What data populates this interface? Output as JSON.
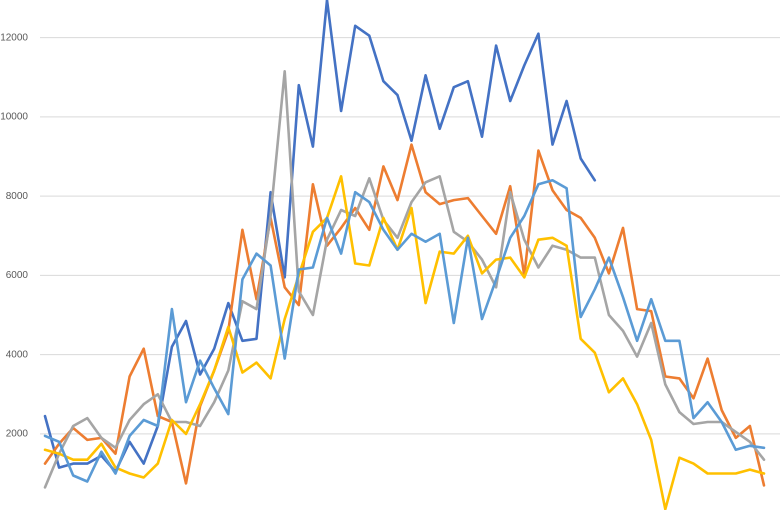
{
  "chart_data": {
    "type": "line",
    "categories": [
      null,
      null,
      null,
      null,
      null,
      null,
      null,
      null,
      null,
      null,
      null,
      null,
      null,
      null,
      null,
      null,
      null,
      null,
      null,
      null,
      null,
      null,
      null,
      null,
      null,
      null,
      null,
      null,
      null,
      null,
      null,
      null,
      null,
      null,
      null,
      null,
      null,
      null,
      null,
      null,
      null,
      null,
      null,
      null,
      null,
      null,
      null,
      null,
      null,
      null,
      null,
      null
    ],
    "ylim": [
      80,
      12950
    ],
    "yticks": [
      2000,
      4000,
      6000,
      8000,
      10000,
      12000
    ],
    "grid": true,
    "series": [
      {
        "color": "#4472c4",
        "values": [
          2450,
          1150,
          1250,
          1250,
          1450,
          1050,
          1800,
          1250,
          2200,
          4200,
          4850,
          3500,
          4150,
          5300,
          4350,
          4400,
          8100,
          5950,
          10800,
          9250,
          12950,
          10150,
          12300,
          12050,
          10900,
          10550,
          9400,
          11050,
          9700,
          10750,
          10900,
          9500,
          11800,
          10400,
          11300,
          12100,
          9300,
          10400,
          8950,
          8400,
          null,
          null,
          null,
          null,
          null,
          null,
          null,
          null,
          null,
          null,
          null,
          null
        ]
      },
      {
        "color": "#ed7d31",
        "values": [
          1250,
          1750,
          2150,
          1850,
          1900,
          1500,
          3450,
          4150,
          2450,
          2300,
          750,
          2700,
          3600,
          4600,
          7150,
          5400,
          7450,
          5700,
          5250,
          8300,
          6750,
          7200,
          7700,
          7150,
          8750,
          7900,
          9300,
          8100,
          7800,
          7900,
          7950,
          7500,
          7050,
          8250,
          6000,
          9150,
          8150,
          7650,
          7450,
          6950,
          6050,
          7200,
          5150,
          5100,
          3450,
          3400,
          2900,
          3900,
          2600,
          1900,
          2200,
          700
        ]
      },
      {
        "color": "#a5a5a5",
        "values": [
          650,
          1500,
          2200,
          2400,
          1900,
          1650,
          2350,
          2750,
          3000,
          2300,
          2300,
          2200,
          2800,
          3600,
          5350,
          5150,
          7500,
          11150,
          5600,
          5000,
          6900,
          7650,
          7500,
          8450,
          7400,
          6950,
          7850,
          8350,
          8500,
          7100,
          6850,
          6400,
          5700,
          8100,
          6900,
          6200,
          6750,
          6650,
          6450,
          6450,
          5000,
          4600,
          3950,
          4800,
          3250,
          2550,
          2250,
          2300,
          2300,
          2050,
          1800,
          1350
        ]
      },
      {
        "color": "#ffc000",
        "values": [
          1600,
          1500,
          1350,
          1350,
          1750,
          1150,
          1000,
          900,
          1250,
          2350,
          2000,
          2750,
          3600,
          4700,
          3550,
          3800,
          3400,
          4900,
          6000,
          7100,
          7450,
          8500,
          6300,
          6250,
          7450,
          6650,
          7700,
          5300,
          6600,
          6550,
          7000,
          6050,
          6400,
          6450,
          5950,
          6900,
          6950,
          6750,
          4400,
          4050,
          3050,
          3400,
          2750,
          1850,
          100,
          1400,
          1250,
          1000,
          1000,
          1000,
          1100,
          1000
        ]
      },
      {
        "color": "#5b9bd5",
        "values": [
          1950,
          1800,
          950,
          800,
          1550,
          1000,
          1950,
          2350,
          2200,
          5150,
          2800,
          3850,
          3150,
          2500,
          5900,
          6550,
          6250,
          3900,
          6150,
          6200,
          7450,
          6550,
          8100,
          7850,
          7150,
          6650,
          7050,
          6850,
          7050,
          4800,
          6950,
          4900,
          5900,
          6950,
          7500,
          8300,
          8400,
          8200,
          4950,
          5650,
          6450,
          5450,
          4350,
          5400,
          4350,
          4350,
          2400,
          2800,
          2300,
          1600,
          1700,
          1650
        ]
      }
    ]
  }
}
